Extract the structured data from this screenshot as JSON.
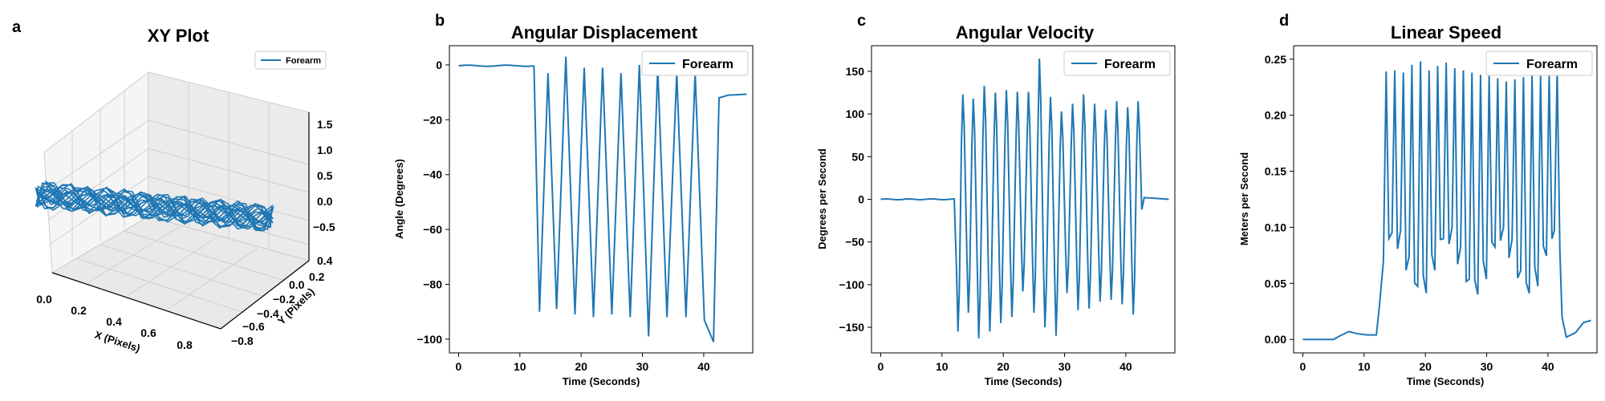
{
  "figure": {
    "series_color": "#1f77b4",
    "panel_letters": [
      "a",
      "b",
      "c",
      "d"
    ]
  },
  "chart_data": [
    {
      "panel": "a",
      "type": "line",
      "projection": "3d",
      "title": "XY Plot",
      "xlabel": "X (Pixels)",
      "ylabel": "Y (Pixels)",
      "zlabel": "",
      "legend": "Forearm",
      "legend_position": "top-right",
      "x_ticks": [
        "0.0",
        "0.2",
        "0.4",
        "0.6",
        "0.8"
      ],
      "y_ticks": [
        "0.4",
        "0.2",
        "0.0",
        "−0.2",
        "−0.4",
        "−0.6",
        "−0.8"
      ],
      "z_ticks": [
        "1.5",
        "1.0",
        "0.5",
        "0.0",
        "−0.5"
      ],
      "trace_x": [
        0.05,
        0.12,
        0.2,
        0.3,
        0.38,
        0.46,
        0.55,
        0.63,
        0.72,
        0.8,
        0.88,
        0.92
      ],
      "trace_y": [
        0.0,
        -0.05,
        -0.1,
        -0.15,
        -0.2,
        -0.25,
        -0.3,
        -0.35,
        -0.4,
        -0.45,
        -0.5,
        -0.55
      ],
      "trace_z": [
        0.0,
        0.0,
        0.0,
        0.0,
        0.0,
        0.0,
        0.0,
        0.0,
        0.0,
        0.0,
        0.0,
        0.0
      ]
    },
    {
      "panel": "b",
      "type": "line",
      "title": "Angular Displacement",
      "xlabel": "Time (Seconds)",
      "ylabel": "Angle (Degrees)",
      "legend": "Forearm",
      "legend_position": "top-right",
      "xlim": [
        -1.5,
        48
      ],
      "ylim": [
        -105,
        7
      ],
      "x_ticks": [
        0,
        10,
        20,
        30,
        40
      ],
      "y_ticks": [
        0,
        -20,
        -40,
        -60,
        -80,
        -100
      ],
      "baseline_end": 12,
      "active_end": 42.5,
      "total_end": 47,
      "peak_times": [
        13.2,
        14.6,
        16.0,
        17.5,
        19.0,
        20.5,
        22.0,
        23.5,
        25.0,
        26.5,
        28.0,
        29.5,
        31.0,
        32.5,
        34.0,
        35.6,
        37.1,
        38.6,
        40.1,
        41.6
      ],
      "peak_values": [
        -90,
        -3,
        -89,
        3,
        -91,
        -1,
        -92,
        -1,
        -91,
        -3,
        -92,
        0,
        -99,
        -1,
        -92,
        -3,
        -92,
        -3,
        -93,
        -101
      ],
      "tail_value": -11
    },
    {
      "panel": "c",
      "type": "line",
      "title": "Angular Velocity",
      "xlabel": "Time (Seconds)",
      "ylabel": "Degrees per Second",
      "legend": "Forearm",
      "legend_position": "top-right",
      "xlim": [
        -1.5,
        48
      ],
      "ylim": [
        -180,
        180
      ],
      "x_ticks": [
        0,
        10,
        20,
        30,
        40
      ],
      "y_ticks": [
        150,
        100,
        50,
        0,
        -50,
        -100,
        -150
      ],
      "baseline_end": 12,
      "active_end": 42.5,
      "total_end": 47,
      "peak_times": [
        12.6,
        13.4,
        14.3,
        15.1,
        16.0,
        16.9,
        17.8,
        18.7,
        19.6,
        20.5,
        21.4,
        22.3,
        23.2,
        24.1,
        25.0,
        25.9,
        26.8,
        27.7,
        28.6,
        29.5,
        30.4,
        31.3,
        32.2,
        33.1,
        34.0,
        34.9,
        35.8,
        36.7,
        37.6,
        38.5,
        39.4,
        40.3,
        41.2,
        42.0
      ],
      "peak_values": [
        -155,
        123,
        -133,
        118,
        -163,
        133,
        -155,
        125,
        -145,
        128,
        -138,
        126,
        -108,
        126,
        -133,
        165,
        -150,
        120,
        -160,
        103,
        -110,
        112,
        -130,
        123,
        -128,
        112,
        -120,
        105,
        -118,
        115,
        -123,
        108,
        -135,
        115
      ]
    },
    {
      "panel": "d",
      "type": "line",
      "title": "Linear Speed",
      "xlabel": "Time (Seconds)",
      "ylabel": "Meters per Second",
      "legend": "Forearm",
      "legend_position": "top-right",
      "xlim": [
        -1.5,
        48
      ],
      "ylim": [
        -0.012,
        0.262
      ],
      "x_ticks": [
        0,
        10,
        20,
        30,
        40
      ],
      "y_ticks": [
        "0.25",
        "0.20",
        "0.15",
        "0.10",
        "0.05",
        "0.00"
      ],
      "active_start": 12.5,
      "active_end": 42,
      "peak_times": [
        13.6,
        15.0,
        16.4,
        17.8,
        19.2,
        20.6,
        22.0,
        23.4,
        24.8,
        26.2,
        27.6,
        29.0,
        30.4,
        31.8,
        33.2,
        34.6,
        36.0,
        37.4,
        38.8,
        40.2,
        41.5
      ],
      "peak_values": [
        0.239,
        0.24,
        0.238,
        0.245,
        0.248,
        0.24,
        0.244,
        0.247,
        0.242,
        0.24,
        0.238,
        0.236,
        0.235,
        0.233,
        0.23,
        0.232,
        0.234,
        0.236,
        0.235,
        0.237,
        0.24
      ],
      "trough_value": 0.07,
      "tail_value": 0.017
    }
  ]
}
